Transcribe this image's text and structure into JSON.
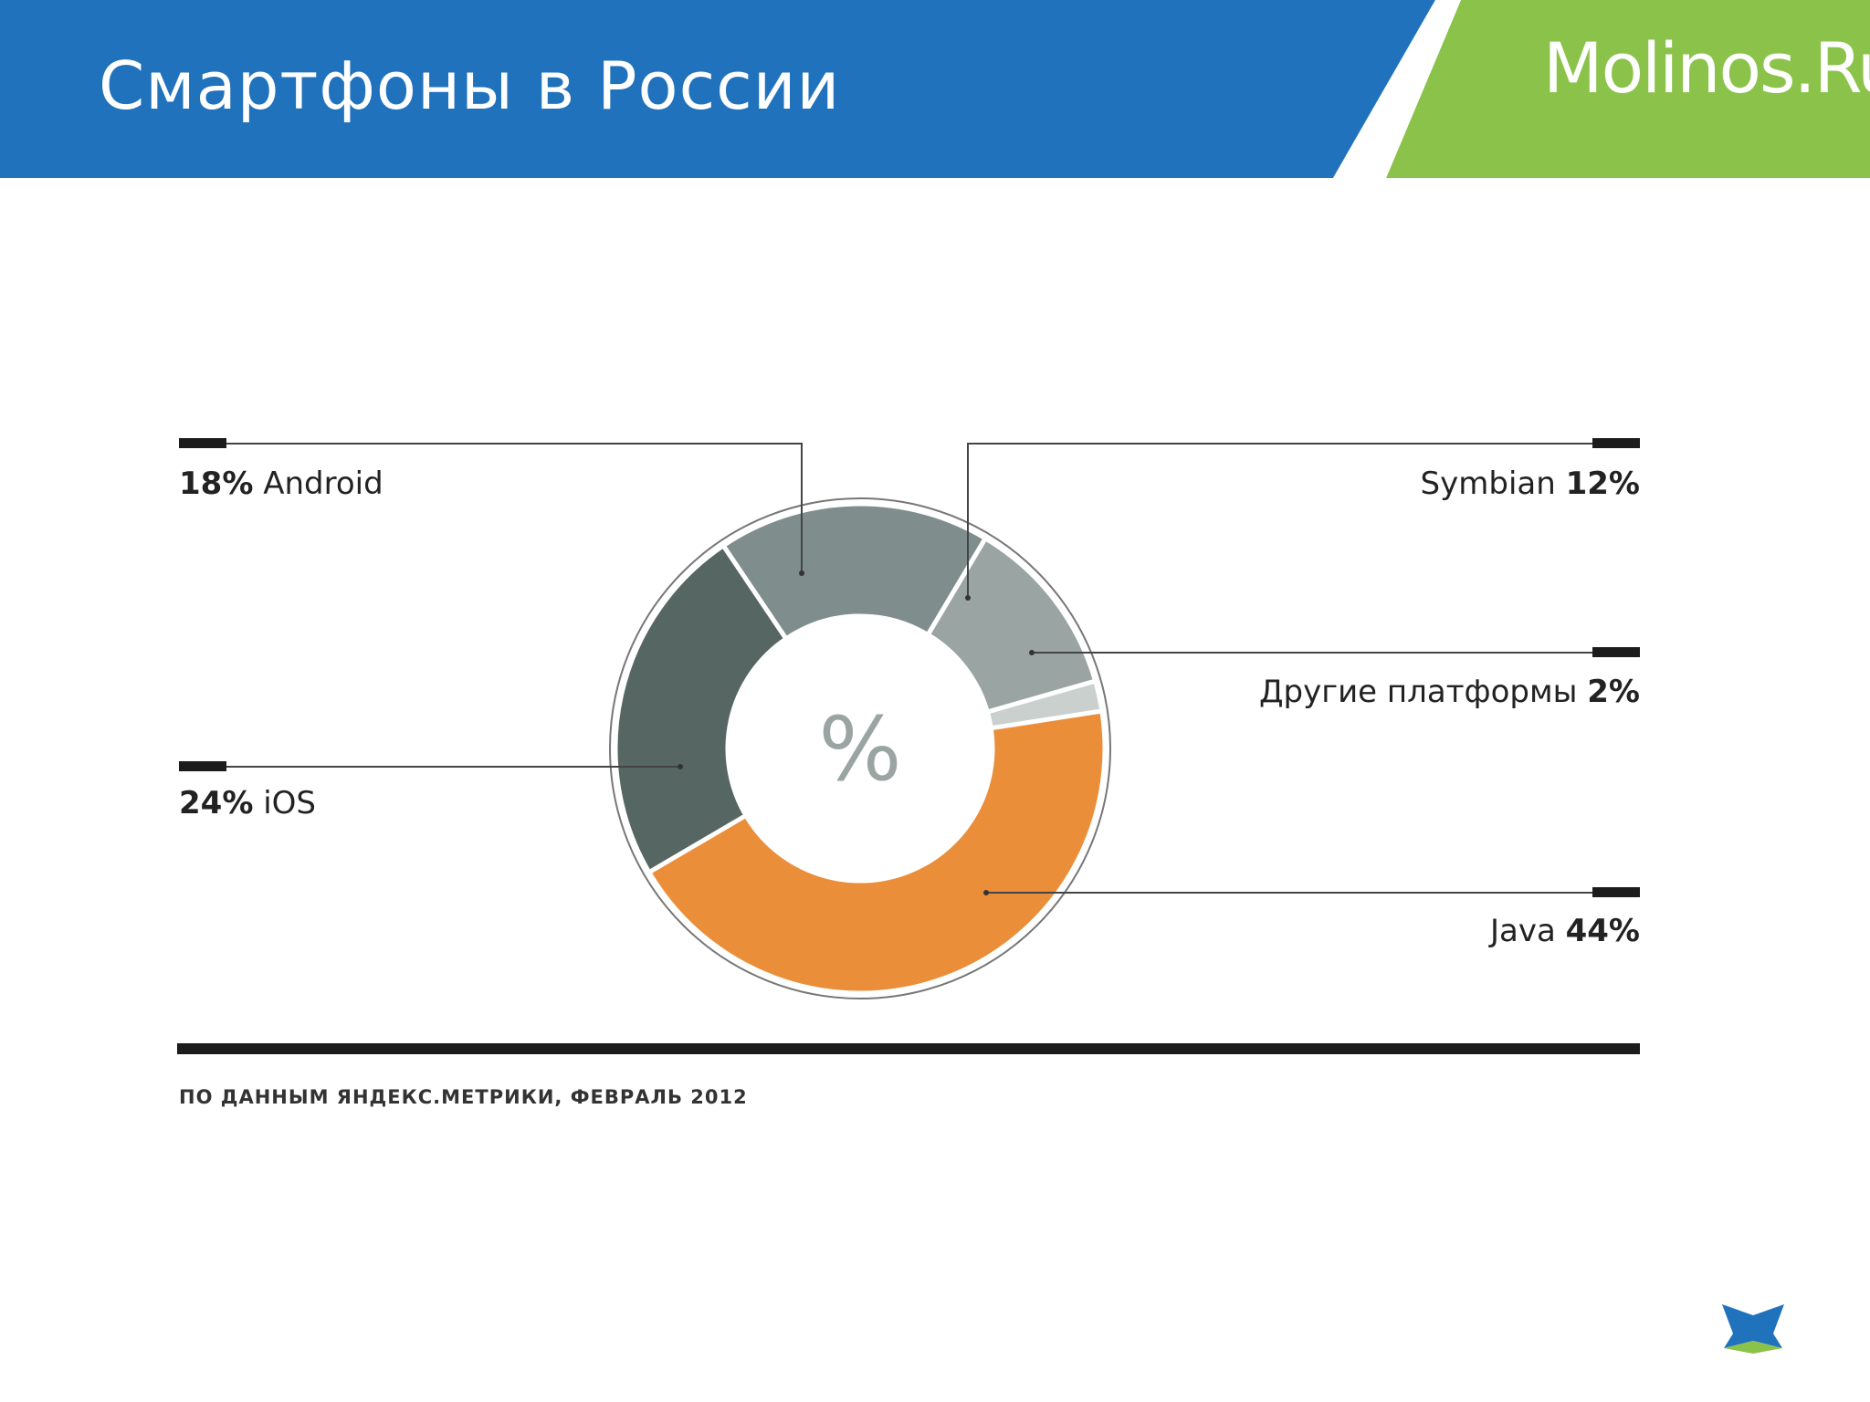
{
  "header": {
    "title": "Смартфоны в России",
    "brand": "Molinos.Ru",
    "colors": {
      "blue": "#2072BD",
      "green": "#8BC34A"
    }
  },
  "chart_data": {
    "type": "pie",
    "style": "donut",
    "title": "",
    "center_label": "%",
    "slices": [
      {
        "label": "Android",
        "value": 18,
        "percent_text": "18%",
        "color": "#7F8D8C"
      },
      {
        "label": "Symbian",
        "value": 12,
        "percent_text": "12%",
        "color": "#9AA5A3"
      },
      {
        "label": "Другие платформы",
        "value": 2,
        "percent_text": "2%",
        "color": "#C9D0CE"
      },
      {
        "label": "Java",
        "value": 44,
        "percent_text": "44%",
        "color": "#EA8E3A"
      },
      {
        "label": "iOS",
        "value": 24,
        "percent_text": "24%",
        "color": "#566663"
      }
    ],
    "source": "ПО ДАННЫМ ЯНДЕКС.МЕТРИКИ, ФЕВРАЛЬ 2012"
  }
}
